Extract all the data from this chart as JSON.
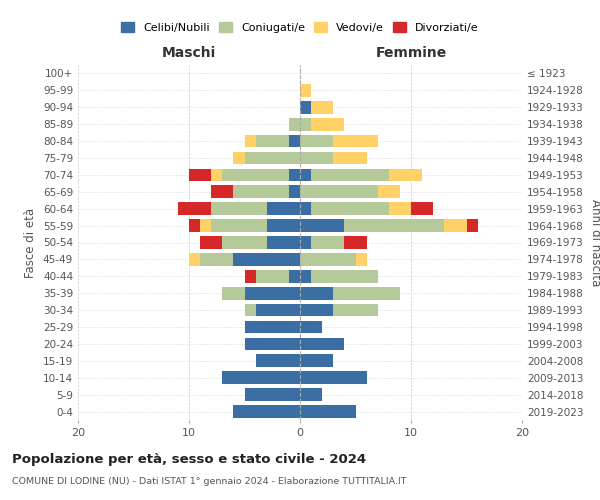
{
  "age_groups": [
    "0-4",
    "5-9",
    "10-14",
    "15-19",
    "20-24",
    "25-29",
    "30-34",
    "35-39",
    "40-44",
    "45-49",
    "50-54",
    "55-59",
    "60-64",
    "65-69",
    "70-74",
    "75-79",
    "80-84",
    "85-89",
    "90-94",
    "95-99",
    "100+"
  ],
  "birth_years": [
    "2019-2023",
    "2014-2018",
    "2009-2013",
    "2004-2008",
    "1999-2003",
    "1994-1998",
    "1989-1993",
    "1984-1988",
    "1979-1983",
    "1974-1978",
    "1969-1973",
    "1964-1968",
    "1959-1963",
    "1954-1958",
    "1949-1953",
    "1944-1948",
    "1939-1943",
    "1934-1938",
    "1929-1933",
    "1924-1928",
    "≤ 1923"
  ],
  "maschi": {
    "celibi": [
      6,
      5,
      7,
      4,
      5,
      5,
      4,
      5,
      1,
      6,
      3,
      3,
      3,
      1,
      1,
      0,
      1,
      0,
      0,
      0,
      0
    ],
    "coniugati": [
      0,
      0,
      0,
      0,
      0,
      0,
      1,
      2,
      3,
      3,
      4,
      5,
      5,
      5,
      6,
      5,
      3,
      1,
      0,
      0,
      0
    ],
    "vedove": [
      0,
      0,
      0,
      0,
      0,
      0,
      0,
      0,
      0,
      1,
      0,
      1,
      0,
      0,
      1,
      1,
      1,
      0,
      0,
      0,
      0
    ],
    "divorziate": [
      0,
      0,
      0,
      0,
      0,
      0,
      0,
      0,
      1,
      0,
      2,
      1,
      3,
      2,
      2,
      0,
      0,
      0,
      0,
      0,
      0
    ]
  },
  "femmine": {
    "nubili": [
      5,
      2,
      6,
      3,
      4,
      2,
      3,
      3,
      1,
      0,
      1,
      4,
      1,
      0,
      1,
      0,
      0,
      0,
      1,
      0,
      0
    ],
    "coniugate": [
      0,
      0,
      0,
      0,
      0,
      0,
      4,
      6,
      6,
      5,
      3,
      9,
      7,
      7,
      7,
      3,
      3,
      1,
      0,
      0,
      0
    ],
    "vedove": [
      0,
      0,
      0,
      0,
      0,
      0,
      0,
      0,
      0,
      1,
      0,
      2,
      2,
      2,
      3,
      3,
      4,
      3,
      2,
      1,
      0
    ],
    "divorziate": [
      0,
      0,
      0,
      0,
      0,
      0,
      0,
      0,
      0,
      0,
      2,
      1,
      2,
      0,
      0,
      0,
      0,
      0,
      0,
      0,
      0
    ]
  },
  "colors": {
    "celibi_nubili": "#3b6ea5",
    "coniugati": "#b5c99a",
    "vedove": "#ffd166",
    "divorziate": "#d62828"
  },
  "title": "Popolazione per età, sesso e stato civile - 2024",
  "subtitle": "COMUNE DI LODINE (NU) - Dati ISTAT 1° gennaio 2024 - Elaborazione TUTTITALIA.IT",
  "xlabel_left": "Maschi",
  "xlabel_right": "Femmine",
  "ylabel_left": "Fasce di età",
  "ylabel_right": "Anni di nascita",
  "xlim": 20,
  "legend_labels": [
    "Celibi/Nubili",
    "Coniugati/e",
    "Vedovi/e",
    "Divorziati/e"
  ]
}
